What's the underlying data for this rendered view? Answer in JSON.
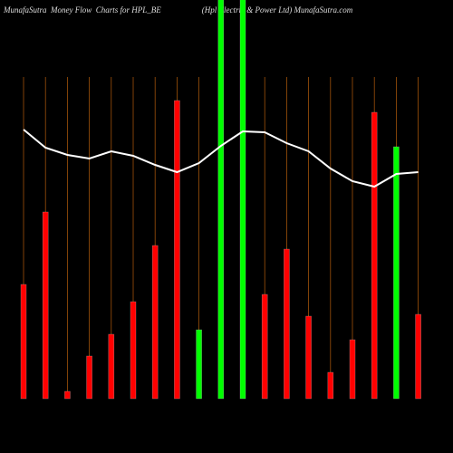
{
  "chart_data": {
    "type": "bar",
    "title": "MunafaSutra  Money Flow  Charts for HPL_BE                    (Hpl Electric & Power Ltd) MunafaSutra.com",
    "categories": [
      null,
      null,
      null,
      null,
      null,
      null,
      null,
      null,
      null,
      null,
      null,
      null,
      null,
      null,
      null,
      null,
      null,
      null,
      null
    ],
    "series": [
      {
        "values": [
          126,
          206,
          8,
          47,
          71,
          107,
          169,
          329,
          76,
          460,
          460,
          115,
          165,
          91,
          29,
          65,
          316,
          278,
          93
        ],
        "colors": [
          "#ff0000",
          "#ff0000",
          "#ff0000",
          "#ff0000",
          "#ff0000",
          "#ff0000",
          "#ff0000",
          "#ff0000",
          "#00ff00",
          "#00ff00",
          "#00ff00",
          "#ff0000",
          "#ff0000",
          "#ff0000",
          "#ff0000",
          "#ff0000",
          "#ff0000",
          "#00ff00",
          "#ff0000"
        ]
      },
      {
        "type": "line",
        "color": "#ffffff",
        "values": [
          297,
          277,
          269,
          265,
          273,
          268,
          258,
          250,
          260,
          279,
          295,
          294,
          282,
          273,
          254,
          240,
          234,
          248,
          250
        ]
      }
    ],
    "ylim": [
      0,
      440
    ],
    "grid": true
  }
}
